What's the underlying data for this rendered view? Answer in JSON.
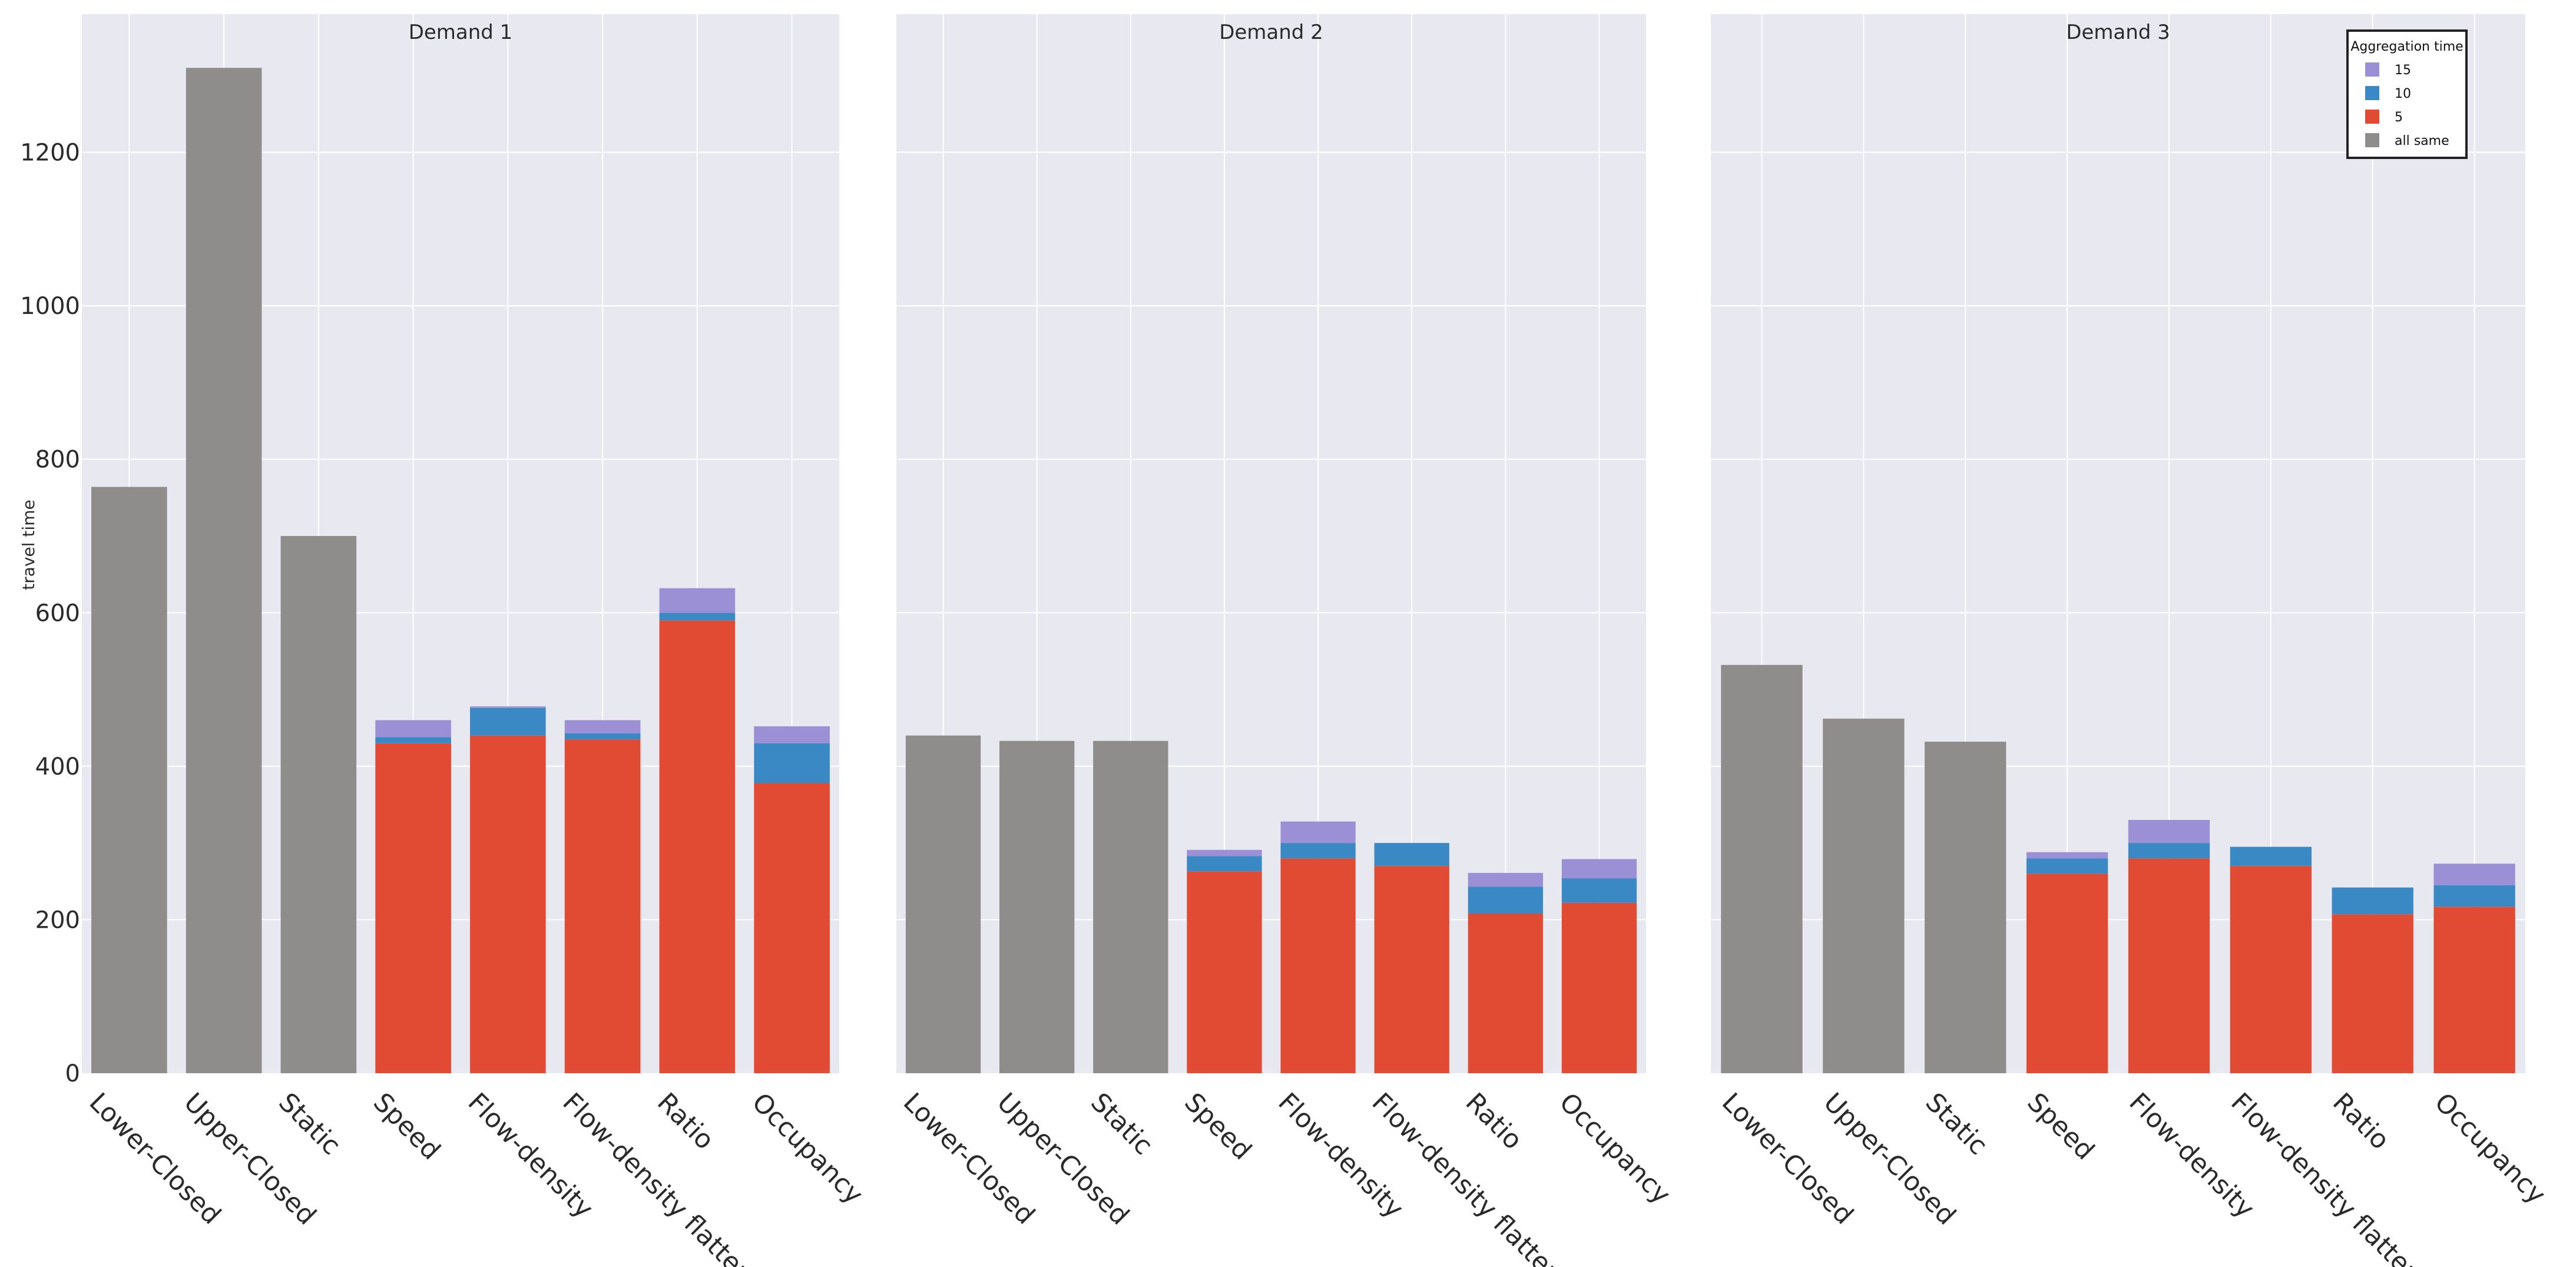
{
  "chart_data": {
    "type": "bar",
    "stacked": true,
    "ylabel": "travel time",
    "ylim": [
      0,
      1380
    ],
    "yticks": [
      0,
      200,
      400,
      600,
      800,
      1000,
      1200
    ],
    "legend": {
      "title": "Aggregation time",
      "position": "top-right",
      "entries": [
        {
          "key": "15",
          "label": "15",
          "color": "#9b8fd6"
        },
        {
          "key": "10",
          "label": "10",
          "color": "#3a89c4"
        },
        {
          "key": "5",
          "label": "5",
          "color": "#e24b33"
        },
        {
          "key": "all_same",
          "label": "all same",
          "color": "#8f8d8b"
        }
      ]
    },
    "categories": [
      "Lower-Closed",
      "Upper-Closed",
      "Static",
      "Speed",
      "Flow-density",
      "Flow-density flatten",
      "Ratio",
      "Occupancy"
    ],
    "panels": [
      {
        "title": "Demand 1",
        "series": [
          {
            "name": "all same",
            "values": [
              764,
              1310,
              700,
              0,
              0,
              0,
              0,
              0
            ]
          },
          {
            "name": "5",
            "values": [
              0,
              0,
              0,
              430,
              440,
              435,
              590,
              378
            ]
          },
          {
            "name": "10",
            "values": [
              0,
              0,
              0,
              8,
              36,
              8,
              10,
              52
            ]
          },
          {
            "name": "15",
            "values": [
              0,
              0,
              0,
              22,
              2,
              17,
              32,
              22
            ]
          }
        ]
      },
      {
        "title": "Demand 2",
        "series": [
          {
            "name": "all same",
            "values": [
              440,
              433,
              433,
              0,
              0,
              0,
              0,
              0
            ]
          },
          {
            "name": "5",
            "values": [
              0,
              0,
              0,
              263,
              280,
              270,
              208,
              222
            ]
          },
          {
            "name": "10",
            "values": [
              0,
              0,
              0,
              20,
              20,
              30,
              35,
              32
            ]
          },
          {
            "name": "15",
            "values": [
              0,
              0,
              0,
              8,
              28,
              0,
              18,
              25
            ]
          }
        ]
      },
      {
        "title": "Demand 3",
        "series": [
          {
            "name": "all same",
            "values": [
              532,
              462,
              432,
              0,
              0,
              0,
              0,
              0
            ]
          },
          {
            "name": "5",
            "values": [
              0,
              0,
              0,
              260,
              280,
              270,
              207,
              217
            ]
          },
          {
            "name": "10",
            "values": [
              0,
              0,
              0,
              20,
              20,
              25,
              35,
              28
            ]
          },
          {
            "name": "15",
            "values": [
              0,
              0,
              0,
              8,
              30,
              0,
              0,
              28
            ]
          }
        ]
      }
    ]
  }
}
